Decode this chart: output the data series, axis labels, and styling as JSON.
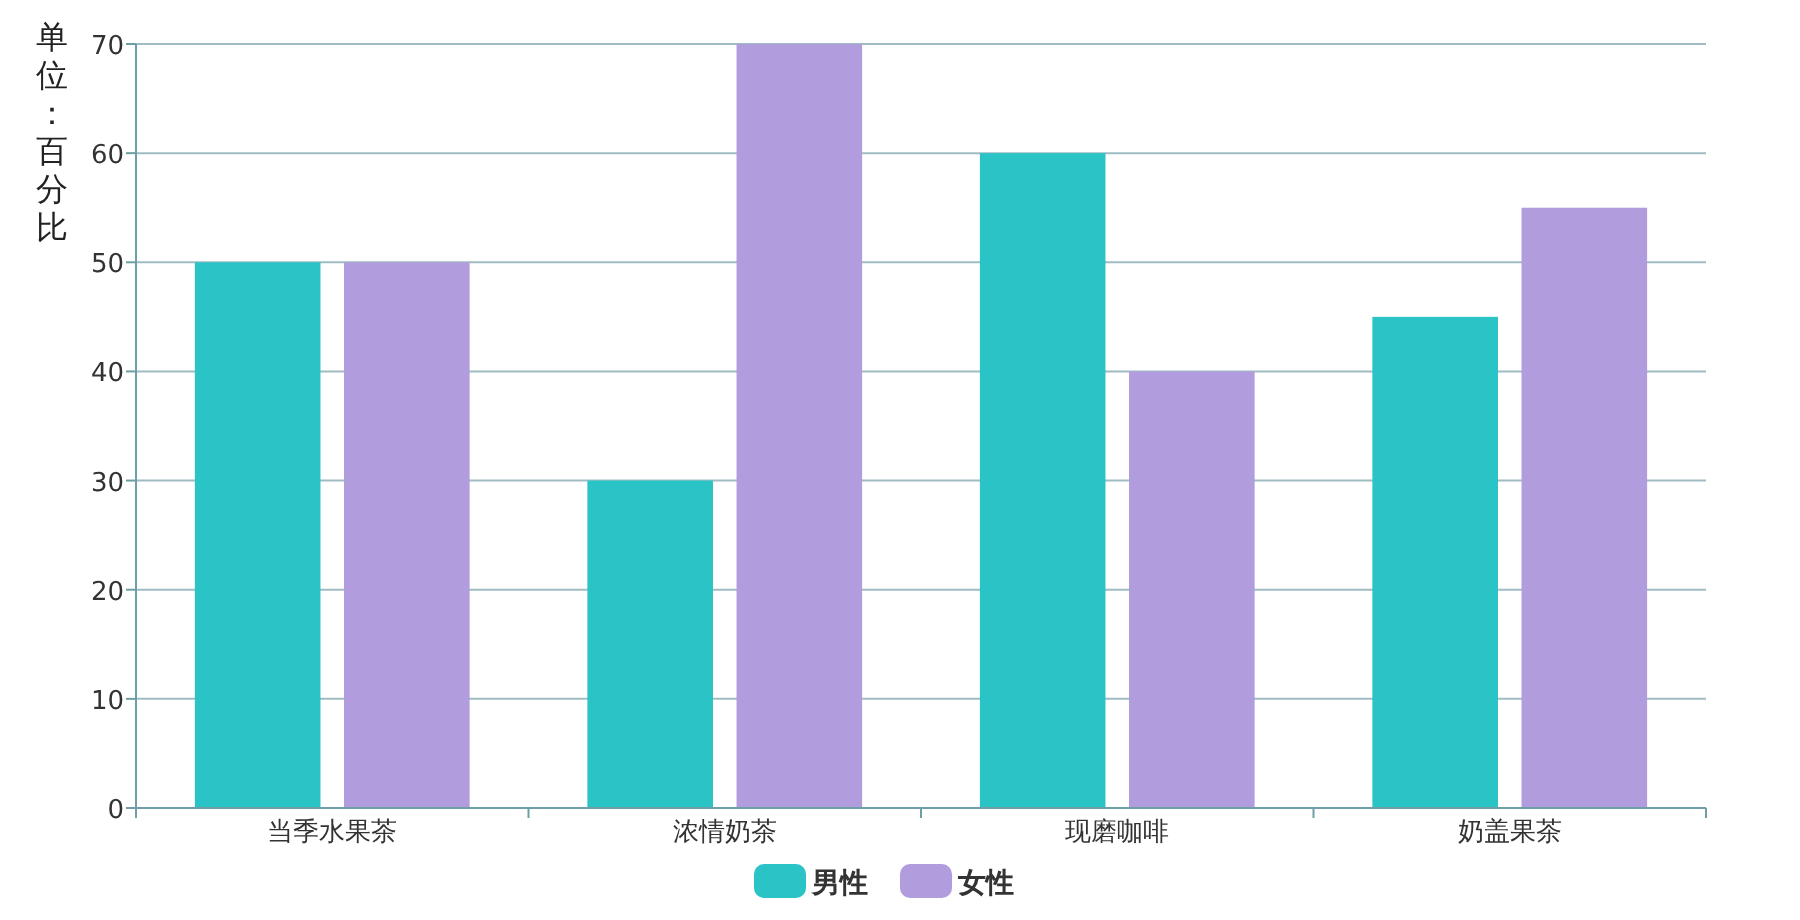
{
  "chart_data": {
    "type": "bar",
    "ylabel": "单位：百分比",
    "categories": [
      "当季水果茶",
      "浓情奶茶",
      "现磨咖啡",
      "奶盖果茶"
    ],
    "series": [
      {
        "name": "男性",
        "color": "#2ac3c6",
        "values": [
          50,
          30,
          60,
          45
        ]
      },
      {
        "name": "女性",
        "color": "#b19ddd",
        "values": [
          50,
          70,
          40,
          55
        ]
      }
    ],
    "ylim": [
      0,
      70
    ],
    "yticks": [
      0,
      10,
      20,
      30,
      40,
      50,
      60,
      70
    ],
    "grid": "y",
    "legend": "bottom"
  }
}
